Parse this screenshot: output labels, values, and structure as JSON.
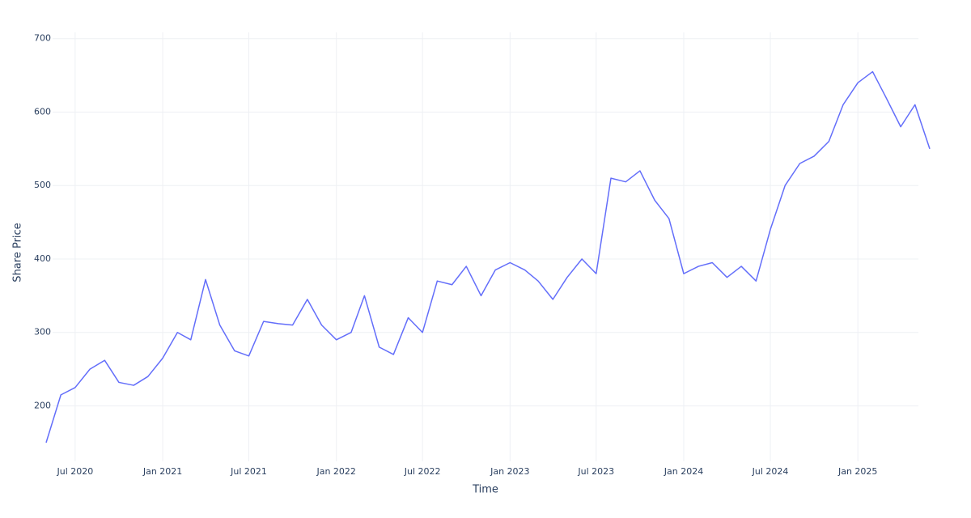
{
  "chart_data": {
    "type": "line",
    "x_label": "Time",
    "y_label": "Share Price",
    "x": [
      "2020-05",
      "2020-06",
      "2020-07",
      "2020-08",
      "2020-09",
      "2020-10",
      "2020-11",
      "2020-12",
      "2021-01",
      "2021-02",
      "2021-03",
      "2021-04",
      "2021-05",
      "2021-06",
      "2021-07",
      "2021-08",
      "2021-09",
      "2021-10",
      "2021-11",
      "2021-12",
      "2022-01",
      "2022-02",
      "2022-03",
      "2022-04",
      "2022-05",
      "2022-06",
      "2022-07",
      "2022-08",
      "2022-09",
      "2022-10",
      "2022-11",
      "2022-12",
      "2023-01",
      "2023-02",
      "2023-03",
      "2023-04",
      "2023-05",
      "2023-06",
      "2023-07",
      "2023-08",
      "2023-09",
      "2023-10",
      "2023-11",
      "2023-12",
      "2024-01",
      "2024-02",
      "2024-03",
      "2024-04",
      "2024-05",
      "2024-06",
      "2024-07",
      "2024-08",
      "2024-09",
      "2024-10",
      "2024-11",
      "2024-12",
      "2025-01",
      "2025-02",
      "2025-03",
      "2025-04",
      "2025-05",
      "2025-06"
    ],
    "values": [
      150,
      215,
      225,
      250,
      262,
      232,
      228,
      240,
      265,
      300,
      290,
      372,
      310,
      275,
      268,
      315,
      312,
      310,
      345,
      310,
      290,
      300,
      350,
      280,
      270,
      320,
      300,
      370,
      365,
      390,
      350,
      385,
      395,
      385,
      370,
      345,
      375,
      400,
      380,
      510,
      505,
      520,
      480,
      455,
      380,
      390,
      395,
      375,
      390,
      370,
      440,
      500,
      530,
      540,
      560,
      610,
      640,
      655,
      620,
      580,
      610,
      550
    ],
    "color": "#636efa",
    "xlim": [
      "2020-05",
      "2025-06"
    ],
    "xticks": [
      {
        "value": "2020-07",
        "label": "Jul 2020"
      },
      {
        "value": "2021-01",
        "label": "Jan 2021"
      },
      {
        "value": "2021-07",
        "label": "Jul 2021"
      },
      {
        "value": "2022-01",
        "label": "Jan 2022"
      },
      {
        "value": "2022-07",
        "label": "Jul 2022"
      },
      {
        "value": "2023-01",
        "label": "Jan 2023"
      },
      {
        "value": "2023-07",
        "label": "Jul 2023"
      },
      {
        "value": "2024-01",
        "label": "Jan 2024"
      },
      {
        "value": "2024-07",
        "label": "Jul 2024"
      },
      {
        "value": "2025-01",
        "label": "Jan 2025"
      }
    ],
    "ylim": [
      124.5,
      708.5
    ],
    "yticks": [
      200,
      300,
      400,
      500,
      600,
      700
    ],
    "grid": true
  }
}
